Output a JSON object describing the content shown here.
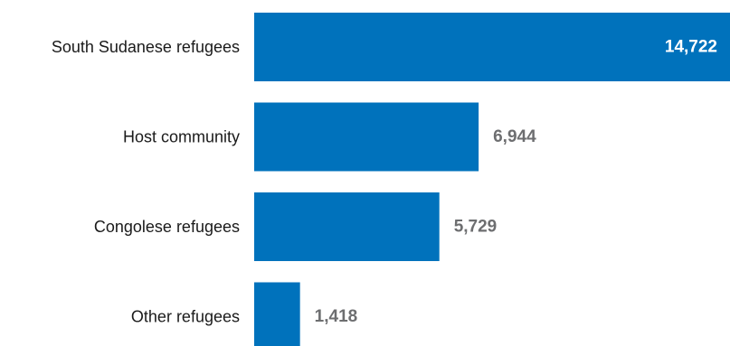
{
  "chart_data": {
    "type": "bar",
    "orientation": "horizontal",
    "categories": [
      "South Sudanese refugees",
      "Host community",
      "Congolese refugees",
      "Other refugees"
    ],
    "values": [
      14722,
      6944,
      5729,
      1418
    ],
    "value_labels": [
      "14,722",
      "6,944",
      "5,729",
      "1,418"
    ],
    "title": "",
    "xlabel": "",
    "ylabel": "",
    "xlim": [
      0,
      14722
    ],
    "grid": false,
    "legend": "none",
    "bar_color": "#0072bc",
    "label_inside_color": "#ffffff",
    "label_outside_color": "#6d6e70"
  }
}
